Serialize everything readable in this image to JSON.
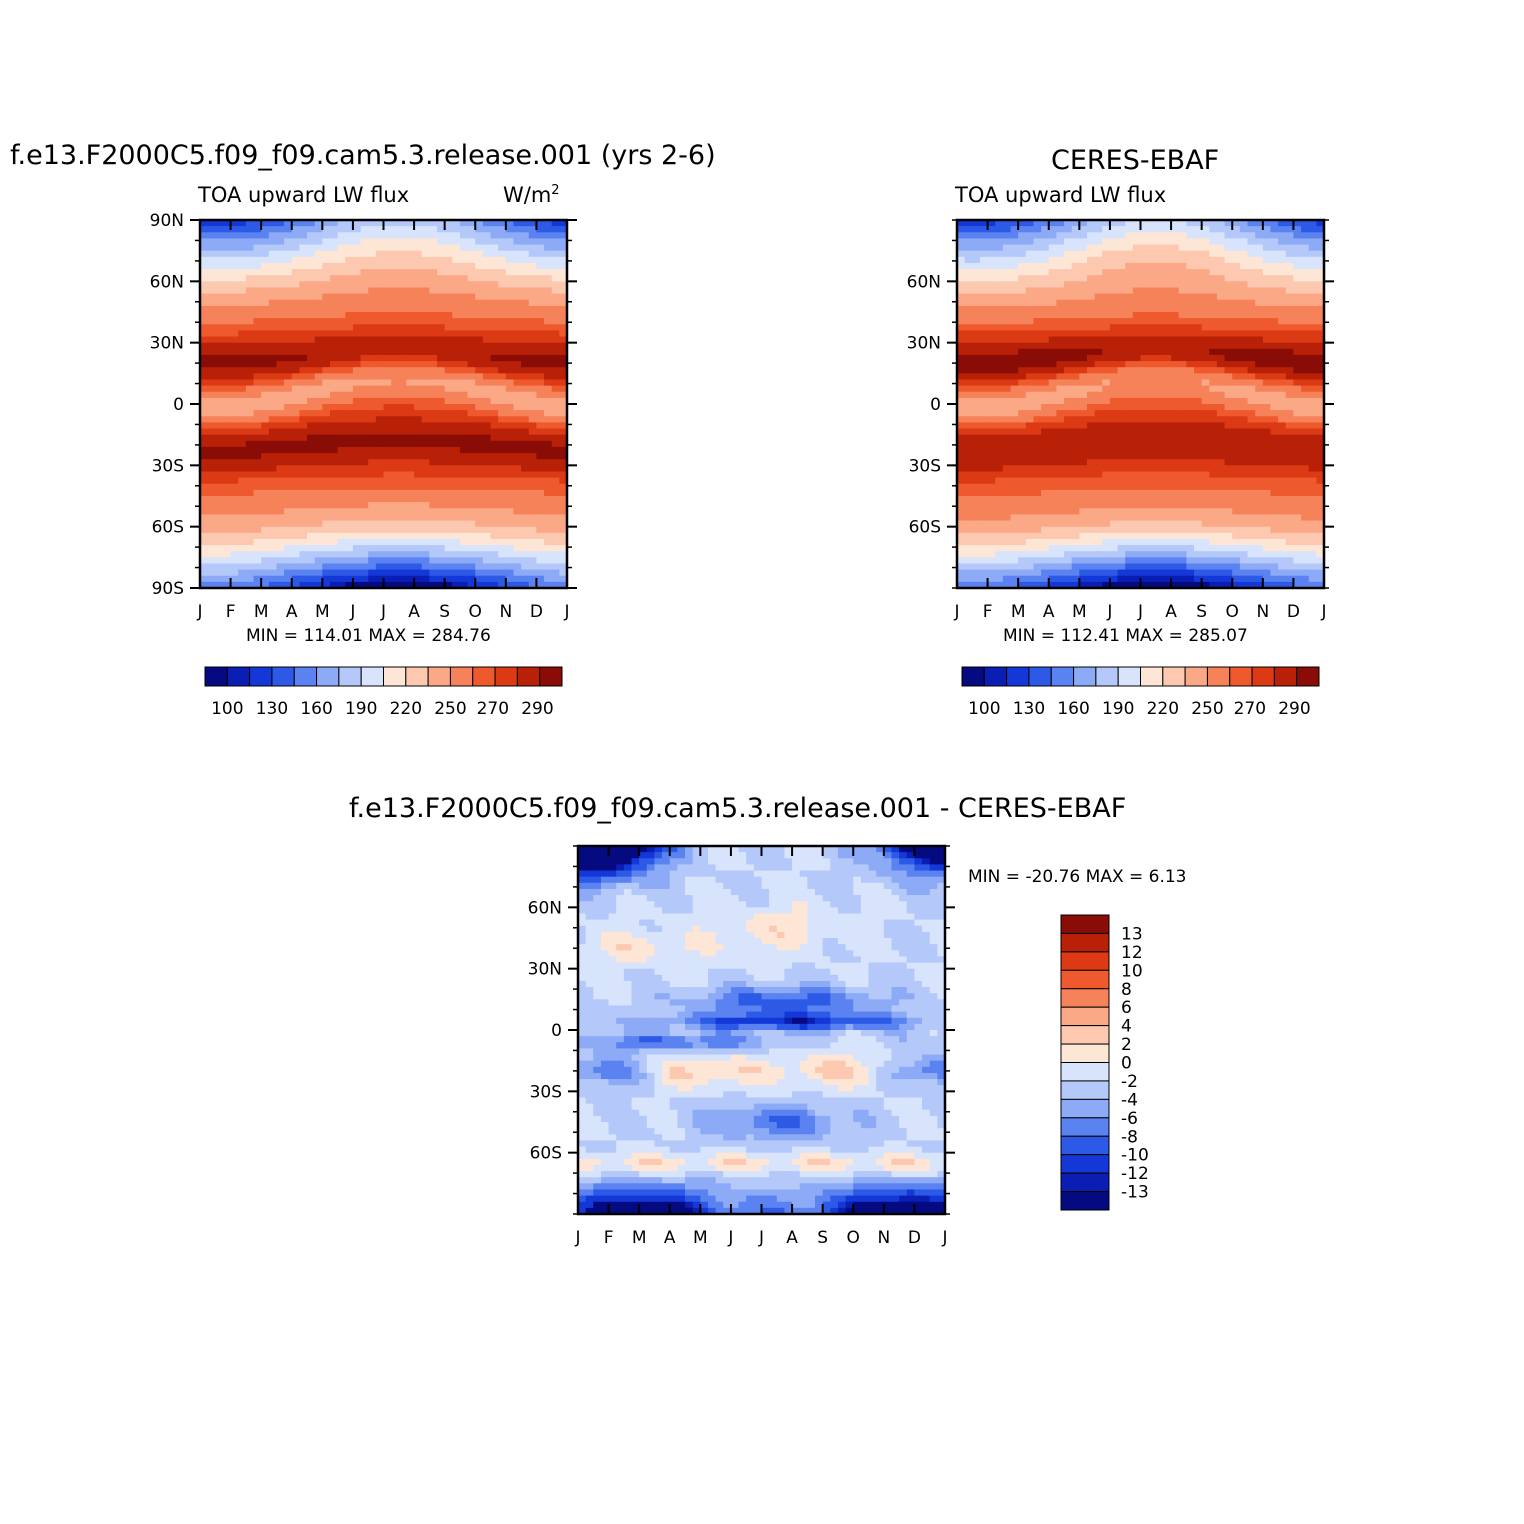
{
  "figure": {
    "panel_a": {
      "title": "f.e13.F2000C5.f09_f09.cam5.3.release.001 (yrs 2-6)",
      "left_string": "TOA upward LW flux",
      "units": "W/m",
      "units_sup": "2",
      "minmax": "MIN = 114.01 MAX = 284.76"
    },
    "panel_b": {
      "title": "CERES-EBAF",
      "left_string": "TOA upward LW flux",
      "minmax": "MIN = 112.41 MAX = 285.07"
    },
    "panel_c": {
      "title": "f.e13.F2000C5.f09_f09.cam5.3.release.001 - CERES-EBAF",
      "minmax": "MIN = -20.76 MAX =    6.13"
    }
  },
  "colors": {
    "abs_scale": [
      "#050a80",
      "#0a1eb4",
      "#1438d8",
      "#2c5ae6",
      "#5a82f0",
      "#8caaf5",
      "#b4c8fa",
      "#d7e4fc",
      "#fde6d6",
      "#fcc8b0",
      "#fba886",
      "#f6825a",
      "#ee5a2e",
      "#dc3a14",
      "#b82008",
      "#8a0c06"
    ],
    "diff_scale": [
      "#050a80",
      "#0a1eb4",
      "#1438d8",
      "#2c5ae6",
      "#5a82f0",
      "#8caaf5",
      "#b4c8fa",
      "#d7e4fc",
      "#fde6d6",
      "#fcc8b0",
      "#fba886",
      "#f6825a",
      "#ee5a2e",
      "#dc3a14",
      "#b82008",
      "#8a0c06"
    ]
  },
  "chart_data": [
    {
      "type": "heatmap",
      "name": "model",
      "title": "f.e13.F2000C5.f09_f09.cam5.3.release.001 (yrs 2-6)",
      "variable": "TOA upward LW flux",
      "units": "W/m2",
      "x_tick_labels": [
        "J",
        "F",
        "M",
        "A",
        "M",
        "J",
        "J",
        "A",
        "S",
        "O",
        "N",
        "D",
        "J"
      ],
      "y_tick_labels": [
        "90N",
        "60N",
        "30N",
        "0",
        "30S",
        "60S",
        "90S"
      ],
      "y_ticks": [
        90,
        60,
        30,
        0,
        -30,
        -60,
        -90
      ],
      "xlim": [
        0,
        12
      ],
      "ylim": [
        -90,
        90
      ],
      "min": 114.01,
      "max": 284.76,
      "colorbar_labels": [
        "100",
        "130",
        "160",
        "190",
        "220",
        "250",
        "270",
        "290"
      ],
      "colorbar_levels": [
        90,
        100,
        115,
        130,
        145,
        160,
        175,
        190,
        205,
        220,
        235,
        250,
        260,
        270,
        280,
        290
      ],
      "field": {
        "min": 114.01,
        "max": 284.76,
        "dry_nh_peak": 284,
        "dry_sh_peak": 284,
        "itcz_dip": 230,
        "polar_nh_winter": 140,
        "polar_sh_winter": 114
      }
    },
    {
      "type": "heatmap",
      "name": "observations",
      "title": "CERES-EBAF",
      "variable": "TOA upward LW flux",
      "x_tick_labels": [
        "J",
        "F",
        "M",
        "A",
        "M",
        "J",
        "J",
        "A",
        "S",
        "O",
        "N",
        "D",
        "J"
      ],
      "y_tick_labels": [
        "60N",
        "30N",
        "0",
        "30S",
        "60S"
      ],
      "y_ticks": [
        60,
        30,
        0,
        -30,
        -60
      ],
      "xlim": [
        0,
        12
      ],
      "ylim": [
        -90,
        90
      ],
      "min": 112.41,
      "max": 285.07,
      "colorbar_labels": [
        "100",
        "130",
        "160",
        "190",
        "220",
        "250",
        "270",
        "290"
      ],
      "colorbar_levels": [
        90,
        100,
        115,
        130,
        145,
        160,
        175,
        190,
        205,
        220,
        235,
        250,
        260,
        270,
        280,
        290
      ],
      "field": {
        "min": 112.41,
        "max": 285.07,
        "dry_nh_peak": 285,
        "dry_sh_peak": 285,
        "itcz_dip": 236,
        "polar_nh_winter": 150,
        "polar_sh_winter": 112
      }
    },
    {
      "type": "heatmap",
      "name": "difference",
      "title": "f.e13.F2000C5.f09_f09.cam5.3.release.001 - CERES-EBAF",
      "x_tick_labels": [
        "J",
        "F",
        "M",
        "A",
        "M",
        "J",
        "J",
        "A",
        "S",
        "O",
        "N",
        "D",
        "J"
      ],
      "y_tick_labels": [
        "60N",
        "30N",
        "0",
        "30S",
        "60S"
      ],
      "y_ticks": [
        60,
        30,
        0,
        -30,
        -60
      ],
      "xlim": [
        0,
        12
      ],
      "ylim": [
        -90,
        90
      ],
      "min": -20.76,
      "max": 6.13,
      "colorbar_labels": [
        "13",
        "12",
        "10",
        "8",
        "6",
        "4",
        "2",
        "0",
        "-2",
        "-4",
        "-6",
        "-8",
        "-10",
        "-12",
        "-13"
      ],
      "colorbar_levels": [
        -13,
        -12,
        -10,
        -8,
        -6,
        -4,
        -2,
        0,
        2,
        4,
        6,
        8,
        10,
        12,
        13
      ]
    }
  ]
}
